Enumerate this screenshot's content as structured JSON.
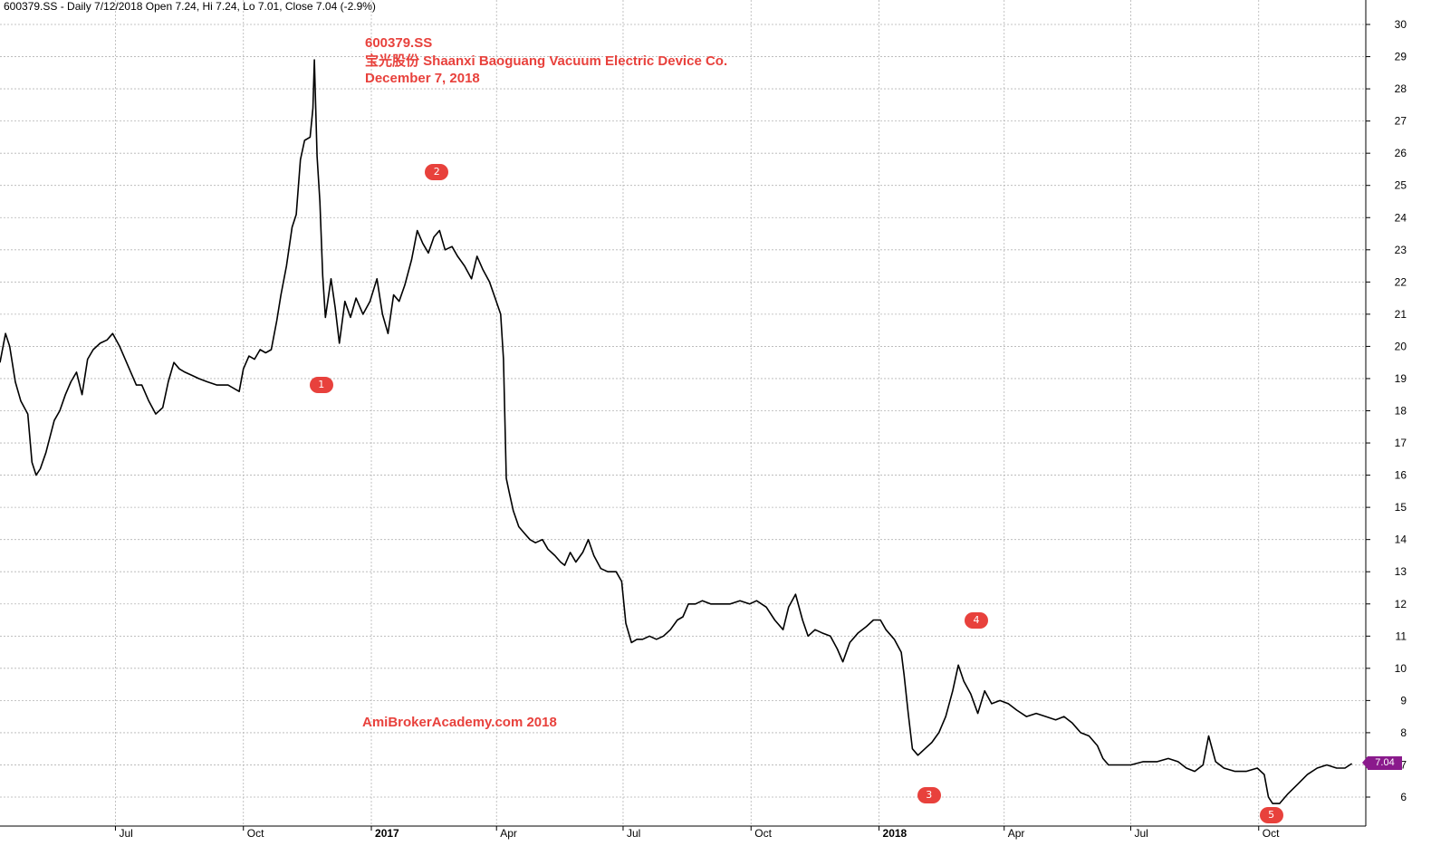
{
  "header": {
    "text": "600379.SS - Daily 7/12/2018 Open 7.24, Hi 7.24, Lo 7.01, Close 7.04 (-2.9%)"
  },
  "annotations": {
    "title_line1": "600379.SS",
    "title_line2": "宝光股份 Shaanxi Baoguang Vacuum Electric Device Co.",
    "title_line3": "December 7, 2018",
    "watermark": "AmiBrokerAcademy.com  2018"
  },
  "markers": [
    {
      "label": "1",
      "x": "2016-11-26",
      "y": 18.8
    },
    {
      "label": "2",
      "x": "2017-02-17",
      "y": 25.4
    },
    {
      "label": "3",
      "x": "2018-02-06",
      "y": 6.05
    },
    {
      "label": "4",
      "x": "2018-03-12",
      "y": 11.5
    },
    {
      "label": "5",
      "x": "2018-10-10",
      "y": 5.45
    }
  ],
  "last_price": "7.04",
  "colors": {
    "line": "#000000",
    "grid": "#b4b4b4",
    "annotation": "#e8413c",
    "price_tag": "#8a1a8c"
  },
  "chart_data": {
    "type": "line",
    "title": "600379.SS",
    "ylim": [
      5,
      30.5
    ],
    "x_range": [
      "2016-04-09",
      "2018-12-17"
    ],
    "y_ticks": [
      6,
      7,
      8,
      9,
      10,
      11,
      12,
      13,
      14,
      15,
      16,
      17,
      18,
      19,
      20,
      21,
      22,
      23,
      24,
      25,
      26,
      27,
      28,
      29,
      30
    ],
    "x_ticks": [
      {
        "label": "Jul",
        "date": "2016-07-01",
        "bold": false
      },
      {
        "label": "Oct",
        "date": "2016-10-01",
        "bold": false
      },
      {
        "label": "2017",
        "date": "2017-01-01",
        "bold": true
      },
      {
        "label": "Apr",
        "date": "2017-04-01",
        "bold": false
      },
      {
        "label": "Jul",
        "date": "2017-07-01",
        "bold": false
      },
      {
        "label": "Oct",
        "date": "2017-10-01",
        "bold": false
      },
      {
        "label": "2018",
        "date": "2018-01-01",
        "bold": true
      },
      {
        "label": "Apr",
        "date": "2018-04-01",
        "bold": false
      },
      {
        "label": "Jul",
        "date": "2018-07-01",
        "bold": false
      },
      {
        "label": "Oct",
        "date": "2018-10-01",
        "bold": false
      }
    ],
    "grid": true,
    "series": [
      {
        "values": [
          [
            "2016-04-09",
            19.5
          ],
          [
            "2016-04-13",
            20.4
          ],
          [
            "2016-04-16",
            20.0
          ],
          [
            "2016-04-20",
            18.9
          ],
          [
            "2016-04-24",
            18.3
          ],
          [
            "2016-04-29",
            17.9
          ],
          [
            "2016-05-02",
            16.4
          ],
          [
            "2016-05-05",
            16.0
          ],
          [
            "2016-05-08",
            16.2
          ],
          [
            "2016-05-12",
            16.7
          ],
          [
            "2016-05-15",
            17.2
          ],
          [
            "2016-05-18",
            17.7
          ],
          [
            "2016-05-22",
            18.0
          ],
          [
            "2016-05-26",
            18.5
          ],
          [
            "2016-05-30",
            18.9
          ],
          [
            "2016-06-03",
            19.2
          ],
          [
            "2016-06-07",
            18.5
          ],
          [
            "2016-06-11",
            19.6
          ],
          [
            "2016-06-15",
            19.9
          ],
          [
            "2016-06-20",
            20.1
          ],
          [
            "2016-06-25",
            20.2
          ],
          [
            "2016-06-29",
            20.4
          ],
          [
            "2016-07-04",
            20.0
          ],
          [
            "2016-07-08",
            19.6
          ],
          [
            "2016-07-12",
            19.2
          ],
          [
            "2016-07-16",
            18.8
          ],
          [
            "2016-07-20",
            18.8
          ],
          [
            "2016-07-25",
            18.3
          ],
          [
            "2016-07-30",
            17.9
          ],
          [
            "2016-08-04",
            18.1
          ],
          [
            "2016-08-08",
            18.9
          ],
          [
            "2016-08-12",
            19.5
          ],
          [
            "2016-08-16",
            19.3
          ],
          [
            "2016-08-20",
            19.2
          ],
          [
            "2016-08-25",
            19.1
          ],
          [
            "2016-08-30",
            19.0
          ],
          [
            "2016-09-05",
            18.9
          ],
          [
            "2016-09-12",
            18.8
          ],
          [
            "2016-09-20",
            18.8
          ],
          [
            "2016-09-28",
            18.6
          ],
          [
            "2016-10-01",
            19.3
          ],
          [
            "2016-10-05",
            19.7
          ],
          [
            "2016-10-09",
            19.6
          ],
          [
            "2016-10-13",
            19.9
          ],
          [
            "2016-10-17",
            19.8
          ],
          [
            "2016-10-21",
            19.9
          ],
          [
            "2016-10-25",
            20.8
          ],
          [
            "2016-10-28",
            21.6
          ],
          [
            "2016-11-01",
            22.5
          ],
          [
            "2016-11-05",
            23.7
          ],
          [
            "2016-11-08",
            24.1
          ],
          [
            "2016-11-11",
            25.8
          ],
          [
            "2016-11-14",
            26.4
          ],
          [
            "2016-11-18",
            26.5
          ],
          [
            "2016-11-20",
            27.4
          ],
          [
            "2016-11-21",
            28.9
          ],
          [
            "2016-11-23",
            25.9
          ],
          [
            "2016-11-25",
            24.5
          ],
          [
            "2016-11-27",
            22.2
          ],
          [
            "2016-11-29",
            20.9
          ],
          [
            "2016-12-03",
            22.1
          ],
          [
            "2016-12-06",
            21.2
          ],
          [
            "2016-12-09",
            20.1
          ],
          [
            "2016-12-13",
            21.4
          ],
          [
            "2016-12-17",
            20.9
          ],
          [
            "2016-12-21",
            21.5
          ],
          [
            "2016-12-26",
            21.0
          ],
          [
            "2016-12-31",
            21.4
          ],
          [
            "2017-01-05",
            22.1
          ],
          [
            "2017-01-09",
            21.0
          ],
          [
            "2017-01-13",
            20.4
          ],
          [
            "2017-01-17",
            21.6
          ],
          [
            "2017-01-21",
            21.4
          ],
          [
            "2017-01-25",
            21.9
          ],
          [
            "2017-01-30",
            22.7
          ],
          [
            "2017-02-03",
            23.6
          ],
          [
            "2017-02-07",
            23.2
          ],
          [
            "2017-02-11",
            22.9
          ],
          [
            "2017-02-15",
            23.4
          ],
          [
            "2017-02-19",
            23.6
          ],
          [
            "2017-02-23",
            23.0
          ],
          [
            "2017-02-28",
            23.1
          ],
          [
            "2017-03-04",
            22.8
          ],
          [
            "2017-03-09",
            22.5
          ],
          [
            "2017-03-14",
            22.1
          ],
          [
            "2017-03-18",
            22.8
          ],
          [
            "2017-03-22",
            22.4
          ],
          [
            "2017-03-27",
            22.0
          ],
          [
            "2017-03-31",
            21.5
          ],
          [
            "2017-04-04",
            21.0
          ],
          [
            "2017-04-06",
            19.6
          ],
          [
            "2017-04-06",
            19.6
          ],
          [
            "2017-04-08",
            15.9
          ],
          [
            "2017-04-10",
            15.5
          ],
          [
            "2017-04-13",
            14.9
          ],
          [
            "2017-04-17",
            14.4
          ],
          [
            "2017-04-21",
            14.2
          ],
          [
            "2017-04-25",
            14.0
          ],
          [
            "2017-04-29",
            13.9
          ],
          [
            "2017-05-04",
            14.0
          ],
          [
            "2017-05-08",
            13.7
          ],
          [
            "2017-05-13",
            13.5
          ],
          [
            "2017-05-17",
            13.3
          ],
          [
            "2017-05-20",
            13.2
          ],
          [
            "2017-05-24",
            13.6
          ],
          [
            "2017-05-28",
            13.3
          ],
          [
            "2017-06-02",
            13.6
          ],
          [
            "2017-06-06",
            14.0
          ],
          [
            "2017-06-10",
            13.5
          ],
          [
            "2017-06-15",
            13.1
          ],
          [
            "2017-06-20",
            13.0
          ],
          [
            "2017-06-26",
            13.0
          ],
          [
            "2017-06-30",
            12.7
          ],
          [
            "2017-07-03",
            11.4
          ],
          [
            "2017-07-07",
            10.8
          ],
          [
            "2017-07-11",
            10.9
          ],
          [
            "2017-07-15",
            10.9
          ],
          [
            "2017-07-20",
            11.0
          ],
          [
            "2017-07-25",
            10.9
          ],
          [
            "2017-07-30",
            11.0
          ],
          [
            "2017-08-04",
            11.2
          ],
          [
            "2017-08-09",
            11.5
          ],
          [
            "2017-08-13",
            11.6
          ],
          [
            "2017-08-17",
            12.0
          ],
          [
            "2017-08-22",
            12.0
          ],
          [
            "2017-08-27",
            12.1
          ],
          [
            "2017-09-02",
            12.0
          ],
          [
            "2017-09-09",
            12.0
          ],
          [
            "2017-09-16",
            12.0
          ],
          [
            "2017-09-23",
            12.1
          ],
          [
            "2017-09-30",
            12.0
          ],
          [
            "2017-10-05",
            12.1
          ],
          [
            "2017-10-12",
            11.9
          ],
          [
            "2017-10-18",
            11.5
          ],
          [
            "2017-10-24",
            11.2
          ],
          [
            "2017-10-28",
            11.9
          ],
          [
            "2017-11-02",
            12.3
          ],
          [
            "2017-11-07",
            11.5
          ],
          [
            "2017-11-11",
            11.0
          ],
          [
            "2017-11-16",
            11.2
          ],
          [
            "2017-11-21",
            11.1
          ],
          [
            "2017-11-27",
            11.0
          ],
          [
            "2017-12-02",
            10.6
          ],
          [
            "2017-12-06",
            10.2
          ],
          [
            "2017-12-11",
            10.8
          ],
          [
            "2017-12-17",
            11.1
          ],
          [
            "2017-12-23",
            11.3
          ],
          [
            "2017-12-28",
            11.5
          ],
          [
            "2018-01-02",
            11.5
          ],
          [
            "2018-01-06",
            11.2
          ],
          [
            "2018-01-12",
            10.9
          ],
          [
            "2018-01-17",
            10.5
          ],
          [
            "2018-01-19",
            9.8
          ],
          [
            "2018-01-22",
            8.6
          ],
          [
            "2018-01-25",
            7.5
          ],
          [
            "2018-01-29",
            7.3
          ],
          [
            "2018-02-03",
            7.5
          ],
          [
            "2018-02-08",
            7.7
          ],
          [
            "2018-02-13",
            8.0
          ],
          [
            "2018-02-18",
            8.5
          ],
          [
            "2018-02-23",
            9.3
          ],
          [
            "2018-02-27",
            10.1
          ],
          [
            "2018-03-03",
            9.6
          ],
          [
            "2018-03-08",
            9.2
          ],
          [
            "2018-03-13",
            8.6
          ],
          [
            "2018-03-18",
            9.3
          ],
          [
            "2018-03-23",
            8.9
          ],
          [
            "2018-03-29",
            9.0
          ],
          [
            "2018-04-04",
            8.9
          ],
          [
            "2018-04-10",
            8.7
          ],
          [
            "2018-04-17",
            8.5
          ],
          [
            "2018-04-24",
            8.6
          ],
          [
            "2018-05-01",
            8.5
          ],
          [
            "2018-05-08",
            8.4
          ],
          [
            "2018-05-14",
            8.5
          ],
          [
            "2018-05-20",
            8.3
          ],
          [
            "2018-05-26",
            8.0
          ],
          [
            "2018-06-01",
            7.9
          ],
          [
            "2018-06-07",
            7.6
          ],
          [
            "2018-06-11",
            7.2
          ],
          [
            "2018-06-15",
            7.0
          ],
          [
            "2018-06-22",
            7.0
          ],
          [
            "2018-07-01",
            7.0
          ],
          [
            "2018-07-10",
            7.1
          ],
          [
            "2018-07-20",
            7.1
          ],
          [
            "2018-07-28",
            7.2
          ],
          [
            "2018-08-04",
            7.1
          ],
          [
            "2018-08-10",
            6.9
          ],
          [
            "2018-08-16",
            6.8
          ],
          [
            "2018-08-22",
            7.0
          ],
          [
            "2018-08-26",
            7.9
          ],
          [
            "2018-08-31",
            7.1
          ],
          [
            "2018-09-06",
            6.9
          ],
          [
            "2018-09-14",
            6.8
          ],
          [
            "2018-09-22",
            6.8
          ],
          [
            "2018-09-30",
            6.9
          ],
          [
            "2018-10-05",
            6.7
          ],
          [
            "2018-10-08",
            6.0
          ],
          [
            "2018-10-11",
            5.8
          ],
          [
            "2018-10-16",
            5.8
          ],
          [
            "2018-10-22",
            6.1
          ],
          [
            "2018-10-29",
            6.4
          ],
          [
            "2018-11-05",
            6.7
          ],
          [
            "2018-11-12",
            6.9
          ],
          [
            "2018-11-19",
            7.0
          ],
          [
            "2018-11-26",
            6.9
          ],
          [
            "2018-12-02",
            6.9
          ],
          [
            "2018-12-07",
            7.04
          ]
        ]
      }
    ]
  }
}
